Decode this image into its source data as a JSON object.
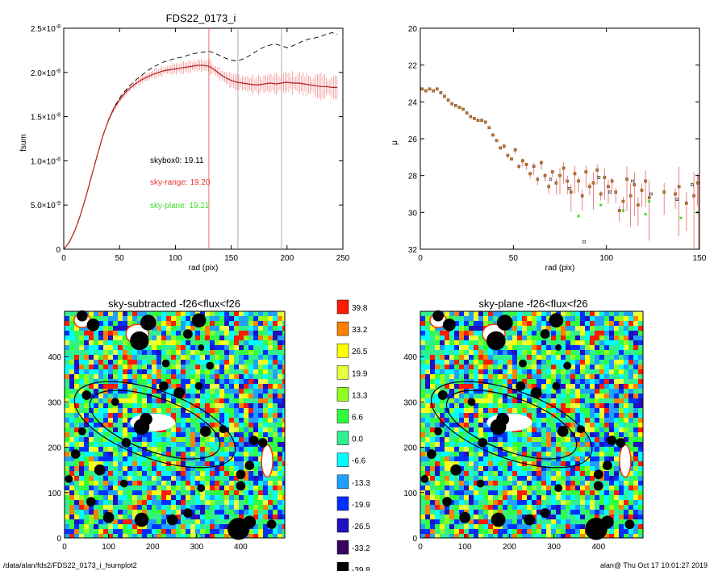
{
  "footer": {
    "left": "/data/alan/fds2/FDS22_0173_i_fsumplot2",
    "right": "alan@  Thu Oct 17 10:01:27 2019"
  },
  "colors": {
    "range": "#e8322e",
    "range_light": "#f4a0a0",
    "plane": "#3ddc2a",
    "skybox": "#000000",
    "mu_point": "#c8732a",
    "vline": "#e05050"
  },
  "chart_data": [
    {
      "type": "line",
      "title": "FDS22_0173_i",
      "xlabel": "rad (pix)",
      "ylabel": "fsum",
      "xlim": [
        0,
        250
      ],
      "ylim": [
        0,
        2.5e-08
      ],
      "xticks": [
        "0",
        "50",
        "100",
        "150",
        "200",
        "250"
      ],
      "yticks": [
        {
          "value": 0,
          "mant": "0",
          "exp": ""
        },
        {
          "value": 5e-09,
          "mant": "5.0×10",
          "exp": "-9"
        },
        {
          "value": 1e-08,
          "mant": "1.0×10",
          "exp": "-8"
        },
        {
          "value": 1.5e-08,
          "mant": "1.5×10",
          "exp": "-8"
        },
        {
          "value": 2e-08,
          "mant": "2.0×10",
          "exp": "-8"
        },
        {
          "value": 2.5e-08,
          "mant": "2.5×10",
          "exp": "-8"
        }
      ],
      "x": [
        0,
        5,
        10,
        15,
        20,
        25,
        30,
        35,
        40,
        45,
        50,
        55,
        60,
        65,
        70,
        75,
        80,
        85,
        90,
        95,
        100,
        105,
        110,
        115,
        120,
        125,
        130,
        135,
        140,
        145,
        150,
        155,
        160,
        165,
        170,
        175,
        180,
        185,
        190,
        195,
        200,
        205,
        210,
        215,
        220,
        225,
        230,
        235,
        240,
        245
      ],
      "series": [
        {
          "line": "dashed",
          "color": "#000000",
          "values": [
            0,
            8e-10,
            2.1e-09,
            3.9e-09,
            6e-09,
            8.3e-09,
            1.06e-08,
            1.28e-08,
            1.46e-08,
            1.6e-08,
            1.71e-08,
            1.79e-08,
            1.86e-08,
            1.92e-08,
            1.97e-08,
            2.02e-08,
            2.06e-08,
            2.09e-08,
            2.12e-08,
            2.14e-08,
            2.16e-08,
            2.17e-08,
            2.19e-08,
            2.21e-08,
            2.22e-08,
            2.23e-08,
            2.24e-08,
            2.22e-08,
            2.19e-08,
            2.16e-08,
            2.14e-08,
            2.13e-08,
            2.15e-08,
            2.18e-08,
            2.22e-08,
            2.26e-08,
            2.29e-08,
            2.31e-08,
            2.32e-08,
            2.3e-08,
            2.28e-08,
            2.3e-08,
            2.33e-08,
            2.36e-08,
            2.38e-08,
            2.39e-08,
            2.41e-08,
            2.43e-08,
            2.45e-08,
            2.43e-08
          ]
        },
        {
          "line": "solid",
          "color": "#e8322e",
          "errorbars": true,
          "values": [
            0,
            8e-10,
            2.1e-09,
            3.9e-09,
            6e-09,
            8.3e-09,
            1.06e-08,
            1.28e-08,
            1.46e-08,
            1.59e-08,
            1.69e-08,
            1.77e-08,
            1.83e-08,
            1.88e-08,
            1.92e-08,
            1.95e-08,
            1.98e-08,
            2e-08,
            2.02e-08,
            2.03e-08,
            2.04e-08,
            2.05e-08,
            2.06e-08,
            2.07e-08,
            2.08e-08,
            2.08e-08,
            2.07e-08,
            2.03e-08,
            1.98e-08,
            1.94e-08,
            1.91e-08,
            1.89e-08,
            1.88e-08,
            1.87e-08,
            1.86e-08,
            1.86e-08,
            1.87e-08,
            1.88e-08,
            1.87e-08,
            1.88e-08,
            1.89e-08,
            1.88e-08,
            1.88e-08,
            1.87e-08,
            1.86e-08,
            1.85e-08,
            1.84e-08,
            1.84e-08,
            1.83e-08,
            1.83e-08
          ]
        }
      ],
      "vlines": [
        130,
        156,
        195
      ],
      "annotations": [
        {
          "text": "skybox0: 19.11",
          "color": "#000000"
        },
        {
          "text": "sky-range: 19.20",
          "color": "#e8322e"
        },
        {
          "text": "sky-plane: 19.21",
          "color": "#3ddc2a"
        }
      ]
    },
    {
      "type": "scatter",
      "title": "",
      "xlabel": "rad (pix)",
      "ylabel": "μ",
      "xlim": [
        0,
        150
      ],
      "ylim": [
        32,
        20
      ],
      "xticks": [
        "0",
        "50",
        "100",
        "150"
      ],
      "yticks": [
        "20",
        "22",
        "24",
        "26",
        "28",
        "30",
        "32"
      ],
      "points": [
        [
          1,
          23.3
        ],
        [
          3,
          23.4
        ],
        [
          5,
          23.3
        ],
        [
          7,
          23.4
        ],
        [
          9,
          23.3
        ],
        [
          11,
          23.5
        ],
        [
          13,
          23.7
        ],
        [
          15,
          23.9
        ],
        [
          17,
          24.1
        ],
        [
          19,
          24.2
        ],
        [
          21,
          24.3
        ],
        [
          23,
          24.4
        ],
        [
          25,
          24.6
        ],
        [
          27,
          24.8
        ],
        [
          29,
          24.9
        ],
        [
          31,
          25.0
        ],
        [
          33,
          25.0
        ],
        [
          35,
          25.1
        ],
        [
          37,
          25.4
        ],
        [
          39,
          25.8
        ],
        [
          41,
          26.1
        ],
        [
          43,
          26.5
        ],
        [
          45,
          26.4
        ],
        [
          47,
          26.9
        ],
        [
          49,
          27.1
        ],
        [
          51,
          26.6
        ],
        [
          53,
          27.5
        ],
        [
          55,
          27.2
        ],
        [
          57,
          27.4
        ],
        [
          59,
          27.9
        ],
        [
          61,
          27.5
        ],
        [
          63,
          28.2
        ],
        [
          65,
          27.3
        ],
        [
          67,
          28.0
        ],
        [
          69,
          28.6
        ],
        [
          71,
          27.8
        ],
        [
          73,
          28.4
        ],
        [
          75,
          28.0
        ],
        [
          77,
          27.6
        ],
        [
          79,
          28.3
        ],
        [
          81,
          28.9
        ],
        [
          83,
          27.9
        ],
        [
          85,
          28.3
        ],
        [
          87,
          29.1
        ],
        [
          89,
          27.8
        ],
        [
          91,
          28.6
        ],
        [
          93,
          28.4
        ],
        [
          95,
          27.7
        ],
        [
          97,
          29.0
        ],
        [
          99,
          28.1
        ],
        [
          101,
          28.6
        ],
        [
          103,
          28.3
        ],
        [
          105,
          28.9
        ],
        [
          107,
          29.9
        ],
        [
          109,
          29.4
        ],
        [
          111,
          28.2
        ],
        [
          113,
          29.1
        ],
        [
          115,
          28.5
        ],
        [
          117,
          29.6
        ],
        [
          119,
          28.8
        ],
        [
          121,
          28.3
        ],
        [
          123,
          29.2
        ],
        [
          131,
          28.9
        ],
        [
          137,
          29.0
        ],
        [
          139,
          28.6
        ],
        [
          143,
          29.5
        ],
        [
          147,
          29.1
        ],
        [
          149,
          28.4
        ]
      ],
      "green_points": [
        [
          85,
          30.2
        ],
        [
          97,
          29.6
        ],
        [
          109,
          29.9
        ],
        [
          121,
          30.1
        ],
        [
          123,
          29.4
        ],
        [
          140,
          30.3
        ],
        [
          149,
          30.0
        ]
      ],
      "black_points": [
        [
          70,
          28.2
        ],
        [
          80,
          28.7
        ],
        [
          88,
          31.6
        ],
        [
          96,
          28.1
        ],
        [
          102,
          28.9
        ],
        [
          114,
          28.3
        ],
        [
          124,
          29.0
        ],
        [
          138,
          29.3
        ],
        [
          146,
          28.5
        ]
      ]
    },
    {
      "type": "heatmap",
      "title": "sky-subtracted -f26<flux<f26",
      "xlim": [
        0,
        500
      ],
      "ylim": [
        0,
        500
      ],
      "xticks": [
        "0",
        "100",
        "200",
        "300",
        "400"
      ],
      "yticks": [
        "0",
        "100",
        "200",
        "300",
        "400"
      ]
    },
    {
      "type": "heatmap",
      "title": "sky-plane -f26<flux<f26",
      "xlim": [
        0,
        500
      ],
      "ylim": [
        0,
        500
      ],
      "xticks": [
        "0",
        "100",
        "200",
        "300",
        "400"
      ],
      "yticks": [
        "0",
        "100",
        "200",
        "300",
        "400"
      ]
    }
  ],
  "colorbar": {
    "labels": [
      "39.8",
      "33.2",
      "26.5",
      "19.9",
      "13.3",
      "6.6",
      "0.0",
      "-6.6",
      "-13.3",
      "-19.9",
      "-26.5",
      "-33.2",
      "-39.8"
    ],
    "colors": [
      "#ff1a00",
      "#ff8000",
      "#ffff00",
      "#e8ff40",
      "#90ff20",
      "#30ff40",
      "#30f090",
      "#00ffff",
      "#20a0ff",
      "#0030ff",
      "#2010c0",
      "#3a0060",
      "#000000"
    ]
  }
}
